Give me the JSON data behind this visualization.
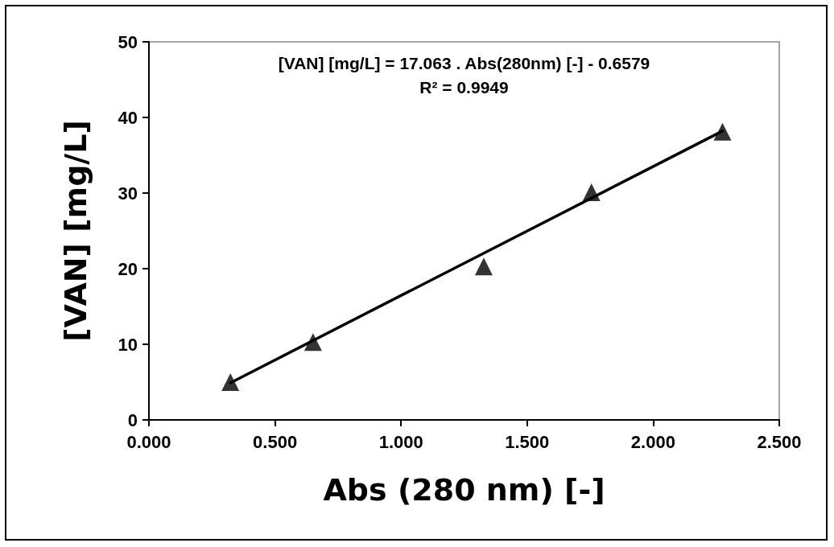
{
  "chart_data": {
    "type": "scatter",
    "xlabel": "Abs (280 nm) [-]",
    "ylabel": "[VAN] [mg/L]",
    "annotations": [
      "[VAN] [mg/L] = 17.063 . Abs(280nm) [-] - 0.6579",
      "R² = 0.9949"
    ],
    "series": [
      {
        "color": "#000000",
        "marker": "triangle",
        "x": [
          0.323,
          0.651,
          1.328,
          1.755,
          2.275
        ],
        "values": [
          5.0,
          10.3,
          20.3,
          30.1,
          38.1
        ]
      },
      {
        "type": "line",
        "color": "#000000",
        "marker": "none",
        "line_style": "solid",
        "x": [
          0.323,
          2.275
        ],
        "values": [
          4.9,
          38.2
        ]
      }
    ],
    "xlim": [
      0,
      2.5
    ],
    "xticks": [
      {
        "value": 0,
        "label": "0.000"
      },
      {
        "value": 0.5,
        "label": "0.500"
      },
      {
        "value": 1,
        "label": "1.000"
      },
      {
        "value": 1.5,
        "label": "1.500"
      },
      {
        "value": 2,
        "label": "2.000"
      },
      {
        "value": 2.5,
        "label": "2.500"
      }
    ],
    "ylim": [
      0,
      50
    ],
    "yticks": [
      0,
      10,
      20,
      30,
      40,
      50
    ],
    "grid": false
  }
}
